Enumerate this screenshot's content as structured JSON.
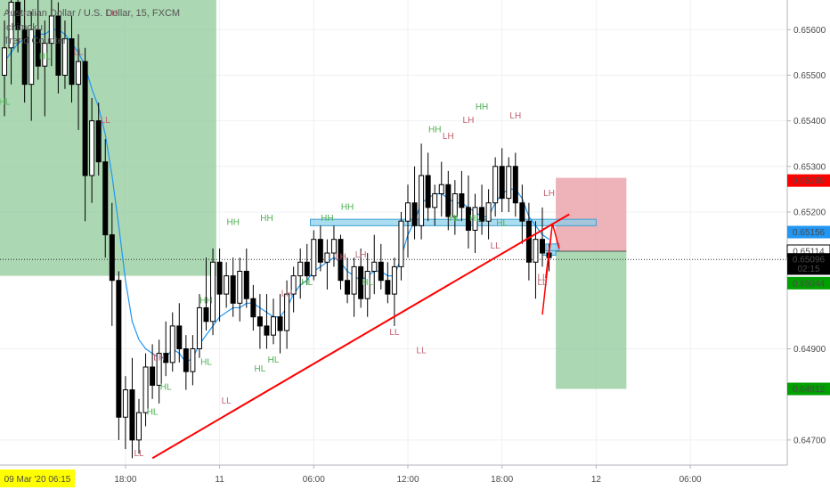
{
  "window": {
    "title": "Australian Dollar / U.S. Dollar, 15, FXCM",
    "indicators": [
      "Ichimoku",
      "Trend Counter"
    ]
  },
  "colors": {
    "up": "#ffffff",
    "down": "#000000",
    "wick": "#000000",
    "baseline": "#2196f3",
    "trend": "#ff0000",
    "zone": "#87ceeb",
    "greenBox": "#8fc99a",
    "redBox": "#e8a0a8",
    "hhColor": "#4caf50",
    "lhColor": "#c06070",
    "stopTag": "#ff0000",
    "entryTag": "#2196f3",
    "targetTag": "#00a000"
  },
  "chart_data": {
    "type": "candlestick",
    "title": "Australian Dollar / U.S. Dollar, 15, FXCM",
    "x_ticks": [
      "18:00",
      "11",
      "06:00",
      "12:00",
      "18:00",
      "12",
      "06:00"
    ],
    "x_tick_index": [
      18,
      32,
      46,
      60,
      74,
      88,
      102
    ],
    "y_ticks": [
      "0.65600",
      "0.65500",
      "0.65400",
      "0.65300",
      "0.65200",
      "0.64900",
      "0.64700"
    ],
    "ylim": [
      0.64645,
      0.65665
    ],
    "candles": [
      {
        "o": 0.655,
        "h": 0.6562,
        "l": 0.6541,
        "c": 0.6556
      },
      {
        "o": 0.6556,
        "h": 0.657,
        "l": 0.6548,
        "c": 0.6566
      },
      {
        "o": 0.6566,
        "h": 0.6572,
        "l": 0.6555,
        "c": 0.656
      },
      {
        "o": 0.656,
        "h": 0.6568,
        "l": 0.6544,
        "c": 0.6548
      },
      {
        "o": 0.6548,
        "h": 0.6564,
        "l": 0.654,
        "c": 0.656
      },
      {
        "o": 0.656,
        "h": 0.6572,
        "l": 0.6549,
        "c": 0.6552
      },
      {
        "o": 0.6552,
        "h": 0.6562,
        "l": 0.6541,
        "c": 0.6557
      },
      {
        "o": 0.6557,
        "h": 0.6567,
        "l": 0.6552,
        "c": 0.6563
      },
      {
        "o": 0.6563,
        "h": 0.6566,
        "l": 0.6546,
        "c": 0.655
      },
      {
        "o": 0.655,
        "h": 0.6562,
        "l": 0.6547,
        "c": 0.6558
      },
      {
        "o": 0.6558,
        "h": 0.6563,
        "l": 0.6544,
        "c": 0.6548
      },
      {
        "o": 0.6548,
        "h": 0.6559,
        "l": 0.6538,
        "c": 0.6553
      },
      {
        "o": 0.6553,
        "h": 0.6556,
        "l": 0.6518,
        "c": 0.6528
      },
      {
        "o": 0.6528,
        "h": 0.6545,
        "l": 0.6522,
        "c": 0.654
      },
      {
        "o": 0.654,
        "h": 0.6544,
        "l": 0.6528,
        "c": 0.6531
      },
      {
        "o": 0.6531,
        "h": 0.6536,
        "l": 0.651,
        "c": 0.6515
      },
      {
        "o": 0.6515,
        "h": 0.6522,
        "l": 0.6495,
        "c": 0.6505
      },
      {
        "o": 0.6505,
        "h": 0.6507,
        "l": 0.647,
        "c": 0.6475
      },
      {
        "o": 0.6475,
        "h": 0.6484,
        "l": 0.6468,
        "c": 0.6481
      },
      {
        "o": 0.6481,
        "h": 0.6488,
        "l": 0.6466,
        "c": 0.647
      },
      {
        "o": 0.647,
        "h": 0.6479,
        "l": 0.6467,
        "c": 0.6476
      },
      {
        "o": 0.6476,
        "h": 0.6489,
        "l": 0.6473,
        "c": 0.6486
      },
      {
        "o": 0.6486,
        "h": 0.6491,
        "l": 0.6479,
        "c": 0.6482
      },
      {
        "o": 0.6482,
        "h": 0.6492,
        "l": 0.6478,
        "c": 0.6489
      },
      {
        "o": 0.6489,
        "h": 0.6496,
        "l": 0.6484,
        "c": 0.6487
      },
      {
        "o": 0.6487,
        "h": 0.6498,
        "l": 0.6485,
        "c": 0.6495
      },
      {
        "o": 0.6495,
        "h": 0.65,
        "l": 0.6487,
        "c": 0.649
      },
      {
        "o": 0.649,
        "h": 0.6493,
        "l": 0.6481,
        "c": 0.6485
      },
      {
        "o": 0.6485,
        "h": 0.6493,
        "l": 0.6482,
        "c": 0.649
      },
      {
        "o": 0.649,
        "h": 0.6502,
        "l": 0.6488,
        "c": 0.6499
      },
      {
        "o": 0.6499,
        "h": 0.651,
        "l": 0.6494,
        "c": 0.6496
      },
      {
        "o": 0.6496,
        "h": 0.6512,
        "l": 0.6493,
        "c": 0.6509
      },
      {
        "o": 0.6509,
        "h": 0.6512,
        "l": 0.6496,
        "c": 0.6502
      },
      {
        "o": 0.6502,
        "h": 0.6509,
        "l": 0.6499,
        "c": 0.6506
      },
      {
        "o": 0.6506,
        "h": 0.651,
        "l": 0.6497,
        "c": 0.65
      },
      {
        "o": 0.65,
        "h": 0.651,
        "l": 0.6496,
        "c": 0.6507
      },
      {
        "o": 0.6507,
        "h": 0.6512,
        "l": 0.6499,
        "c": 0.6501
      },
      {
        "o": 0.6501,
        "h": 0.6504,
        "l": 0.6494,
        "c": 0.6497
      },
      {
        "o": 0.6497,
        "h": 0.6502,
        "l": 0.649,
        "c": 0.6495
      },
      {
        "o": 0.6495,
        "h": 0.6502,
        "l": 0.649,
        "c": 0.6493
      },
      {
        "o": 0.6493,
        "h": 0.6501,
        "l": 0.6491,
        "c": 0.6497
      },
      {
        "o": 0.6497,
        "h": 0.6502,
        "l": 0.6489,
        "c": 0.6494
      },
      {
        "o": 0.6494,
        "h": 0.6505,
        "l": 0.649,
        "c": 0.6502
      },
      {
        "o": 0.6502,
        "h": 0.6508,
        "l": 0.6498,
        "c": 0.6506
      },
      {
        "o": 0.6506,
        "h": 0.6512,
        "l": 0.6501,
        "c": 0.6509
      },
      {
        "o": 0.6509,
        "h": 0.6513,
        "l": 0.6504,
        "c": 0.6506
      },
      {
        "o": 0.6506,
        "h": 0.6516,
        "l": 0.6505,
        "c": 0.6514
      },
      {
        "o": 0.6514,
        "h": 0.6517,
        "l": 0.6507,
        "c": 0.6509
      },
      {
        "o": 0.6509,
        "h": 0.6514,
        "l": 0.6503,
        "c": 0.6511
      },
      {
        "o": 0.6511,
        "h": 0.6517,
        "l": 0.6508,
        "c": 0.6514
      },
      {
        "o": 0.6514,
        "h": 0.6515,
        "l": 0.6503,
        "c": 0.6505
      },
      {
        "o": 0.6505,
        "h": 0.651,
        "l": 0.65,
        "c": 0.6502
      },
      {
        "o": 0.6502,
        "h": 0.651,
        "l": 0.6497,
        "c": 0.6508
      },
      {
        "o": 0.6508,
        "h": 0.6512,
        "l": 0.6499,
        "c": 0.6501
      },
      {
        "o": 0.6501,
        "h": 0.6511,
        "l": 0.6497,
        "c": 0.6507
      },
      {
        "o": 0.6507,
        "h": 0.6515,
        "l": 0.6502,
        "c": 0.6509
      },
      {
        "o": 0.6509,
        "h": 0.6513,
        "l": 0.6503,
        "c": 0.6505
      },
      {
        "o": 0.6505,
        "h": 0.6509,
        "l": 0.65,
        "c": 0.6502
      },
      {
        "o": 0.6502,
        "h": 0.651,
        "l": 0.6495,
        "c": 0.6508
      },
      {
        "o": 0.6508,
        "h": 0.652,
        "l": 0.6505,
        "c": 0.6518
      },
      {
        "o": 0.6518,
        "h": 0.6526,
        "l": 0.651,
        "c": 0.6522
      },
      {
        "o": 0.6522,
        "h": 0.653,
        "l": 0.6514,
        "c": 0.6517
      },
      {
        "o": 0.6517,
        "h": 0.6535,
        "l": 0.6514,
        "c": 0.6528
      },
      {
        "o": 0.6528,
        "h": 0.6533,
        "l": 0.6518,
        "c": 0.6521
      },
      {
        "o": 0.6521,
        "h": 0.6526,
        "l": 0.6517,
        "c": 0.6524
      },
      {
        "o": 0.6524,
        "h": 0.6531,
        "l": 0.6519,
        "c": 0.6526
      },
      {
        "o": 0.6526,
        "h": 0.6529,
        "l": 0.6516,
        "c": 0.6519
      },
      {
        "o": 0.6519,
        "h": 0.6527,
        "l": 0.6515,
        "c": 0.6524
      },
      {
        "o": 0.6524,
        "h": 0.6529,
        "l": 0.6518,
        "c": 0.6521
      },
      {
        "o": 0.6521,
        "h": 0.6528,
        "l": 0.6512,
        "c": 0.6516
      },
      {
        "o": 0.6516,
        "h": 0.6524,
        "l": 0.6511,
        "c": 0.6521
      },
      {
        "o": 0.6521,
        "h": 0.6526,
        "l": 0.6515,
        "c": 0.6518
      },
      {
        "o": 0.6518,
        "h": 0.6525,
        "l": 0.6514,
        "c": 0.6522
      },
      {
        "o": 0.6522,
        "h": 0.6532,
        "l": 0.6519,
        "c": 0.653
      },
      {
        "o": 0.653,
        "h": 0.6534,
        "l": 0.652,
        "c": 0.6523
      },
      {
        "o": 0.6523,
        "h": 0.6532,
        "l": 0.652,
        "c": 0.653
      },
      {
        "o": 0.653,
        "h": 0.6533,
        "l": 0.6519,
        "c": 0.6522
      },
      {
        "o": 0.6522,
        "h": 0.6526,
        "l": 0.6513,
        "c": 0.6518
      },
      {
        "o": 0.6518,
        "h": 0.6522,
        "l": 0.6505,
        "c": 0.6509
      },
      {
        "o": 0.6509,
        "h": 0.6518,
        "l": 0.6501,
        "c": 0.6514
      },
      {
        "o": 0.6514,
        "h": 0.6521,
        "l": 0.6508,
        "c": 0.6511
      },
      {
        "o": 0.6511,
        "h": 0.6513,
        "l": 0.6507,
        "c": 0.651
      }
    ]
  },
  "labels": [
    {
      "t": "HL",
      "i": 0,
      "p": 0.65435
    },
    {
      "t": "LL",
      "i": 11,
      "p": 0.65545
    },
    {
      "t": "HL",
      "i": 6,
      "p": 0.65535
    },
    {
      "t": "LH",
      "i": 16,
      "p": 0.6563
    },
    {
      "t": "LL",
      "i": 15,
      "p": 0.65395
    },
    {
      "t": "LH",
      "i": 23,
      "p": 0.64875
    },
    {
      "t": "HL",
      "i": 24,
      "p": 0.6481
    },
    {
      "t": "HL",
      "i": 30,
      "p": 0.64865
    },
    {
      "t": "LL",
      "i": 20,
      "p": 0.64665
    },
    {
      "t": "HL",
      "i": 22,
      "p": 0.64755
    },
    {
      "t": "HH",
      "i": 30,
      "p": 0.65
    },
    {
      "t": "HH",
      "i": 34,
      "p": 0.65172
    },
    {
      "t": "HH",
      "i": 39,
      "p": 0.6518
    },
    {
      "t": "LL",
      "i": 33,
      "p": 0.6478
    },
    {
      "t": "HL",
      "i": 38,
      "p": 0.6485
    },
    {
      "t": "HL",
      "i": 40,
      "p": 0.6487
    },
    {
      "t": "LH",
      "i": 42,
      "p": 0.65015
    },
    {
      "t": "HH",
      "i": 48,
      "p": 0.6518
    },
    {
      "t": "HH",
      "i": 51,
      "p": 0.65205
    },
    {
      "t": "HL",
      "i": 45,
      "p": 0.6504
    },
    {
      "t": "LH",
      "i": 50,
      "p": 0.65095
    },
    {
      "t": "LH",
      "i": 53,
      "p": 0.651
    },
    {
      "t": "HL",
      "i": 54,
      "p": 0.6504
    },
    {
      "t": "LL",
      "i": 58,
      "p": 0.6493
    },
    {
      "t": "LL",
      "i": 62,
      "p": 0.6489
    },
    {
      "t": "HH",
      "i": 64,
      "p": 0.65375
    },
    {
      "t": "LH",
      "i": 66,
      "p": 0.6536
    },
    {
      "t": "LH",
      "i": 69,
      "p": 0.65395
    },
    {
      "t": "HH",
      "i": 71,
      "p": 0.65425
    },
    {
      "t": "HL",
      "i": 67,
      "p": 0.6518
    },
    {
      "t": "HL",
      "i": 70,
      "p": 0.6518
    },
    {
      "t": "HL",
      "i": 74,
      "p": 0.6517
    },
    {
      "t": "LH",
      "i": 76,
      "p": 0.65405
    },
    {
      "t": "LL",
      "i": 73,
      "p": 0.6512
    },
    {
      "t": "LH",
      "i": 81,
      "p": 0.65235
    },
    {
      "t": "LL",
      "i": 80,
      "p": 0.6505
    },
    {
      "t": "LL",
      "i": 80,
      "p": 0.6504
    }
  ],
  "baseline": [
    0.6553,
    0.6555,
    0.6557,
    0.6558,
    0.6558,
    0.6559,
    0.6559,
    0.656,
    0.656,
    0.6559,
    0.6557,
    0.6555,
    0.6552,
    0.6547,
    0.6543,
    0.6537,
    0.6528,
    0.6517,
    0.6505,
    0.6496,
    0.6492,
    0.649,
    0.6489,
    0.6488,
    0.6488,
    0.649,
    0.6489,
    0.6487,
    0.6488,
    0.6491,
    0.6493,
    0.6495,
    0.6497,
    0.6498,
    0.6499,
    0.6499,
    0.65,
    0.65,
    0.6499,
    0.6498,
    0.6497,
    0.6497,
    0.6499,
    0.6502,
    0.6504,
    0.6505,
    0.6507,
    0.6508,
    0.6509,
    0.651,
    0.6509,
    0.6507,
    0.6506,
    0.6505,
    0.6506,
    0.6507,
    0.6507,
    0.6506,
    0.6506,
    0.651,
    0.6515,
    0.6518,
    0.6522,
    0.6523,
    0.6524,
    0.6524,
    0.6523,
    0.6522,
    0.6522,
    0.6521,
    0.652,
    0.6519,
    0.6519,
    0.6522,
    0.6524,
    0.6525,
    0.6525,
    0.6523,
    0.6519,
    0.6517,
    0.6515,
    0.6514
  ],
  "zones": {
    "green_left": {
      "i0": -1,
      "i1": 31.5,
      "p0": 0.65665,
      "p1": 0.6506
    },
    "blue_zone": {
      "i0": 45.5,
      "i1": 88,
      "p0": 0.65184,
      "p1": 0.6517
    },
    "blue_small": {
      "i0": 80.5,
      "i1": 82.5,
      "p0": 0.6513,
      "p1": 0.65115
    },
    "blue_small2": {
      "i0": 80,
      "i1": 82,
      "p0": 0.65115,
      "p1": 0.65105
    },
    "red_box": {
      "i0": 82,
      "i1": 92.5,
      "p0": 0.65275,
      "p1": 0.65114
    },
    "green_box": {
      "i0": 82,
      "i1": 92.5,
      "p0": 0.65114,
      "p1": 0.64812
    }
  },
  "trendline": {
    "i0": 22,
    "p0": 0.6466,
    "i1": 84,
    "p1": 0.65195
  },
  "redPath": [
    {
      "i": 80,
      "p": 0.64975
    },
    {
      "i": 81.5,
      "p": 0.65175
    },
    {
      "i": 82.5,
      "p": 0.6512
    },
    {
      "i": 81.5,
      "p": 0.65175
    },
    {
      "i": 80.5,
      "p": 0.65055
    }
  ],
  "crosshair": {
    "price": 0.65096
  },
  "priceTags": [
    {
      "label": "0.65269",
      "price": 0.65269,
      "bg": "#ff0000",
      "fg": "#ffffff"
    },
    {
      "label": "0.65156",
      "price": 0.65156,
      "bg": "#2196f3",
      "fg": "#ffffff"
    },
    {
      "label": "0.65114",
      "price": 0.65114,
      "bg": "#ffffff",
      "fg": "#000000",
      "border": "#000000"
    },
    {
      "label": "0.65096",
      "price": 0.65096,
      "bg": "#000000",
      "fg": "#ffffff"
    },
    {
      "label": "02:15",
      "price": 0.65076,
      "bg": "#000000",
      "fg": "#ffffff"
    },
    {
      "label": "0.65044",
      "price": 0.65044,
      "bg": "#00a000",
      "fg": "#ffffff"
    },
    {
      "label": "0.64812",
      "price": 0.64812,
      "bg": "#00a000",
      "fg": "#ffffff"
    }
  ],
  "dateTag": "09 Mar '20   06:15",
  "dateTagColor": "#ffff00"
}
